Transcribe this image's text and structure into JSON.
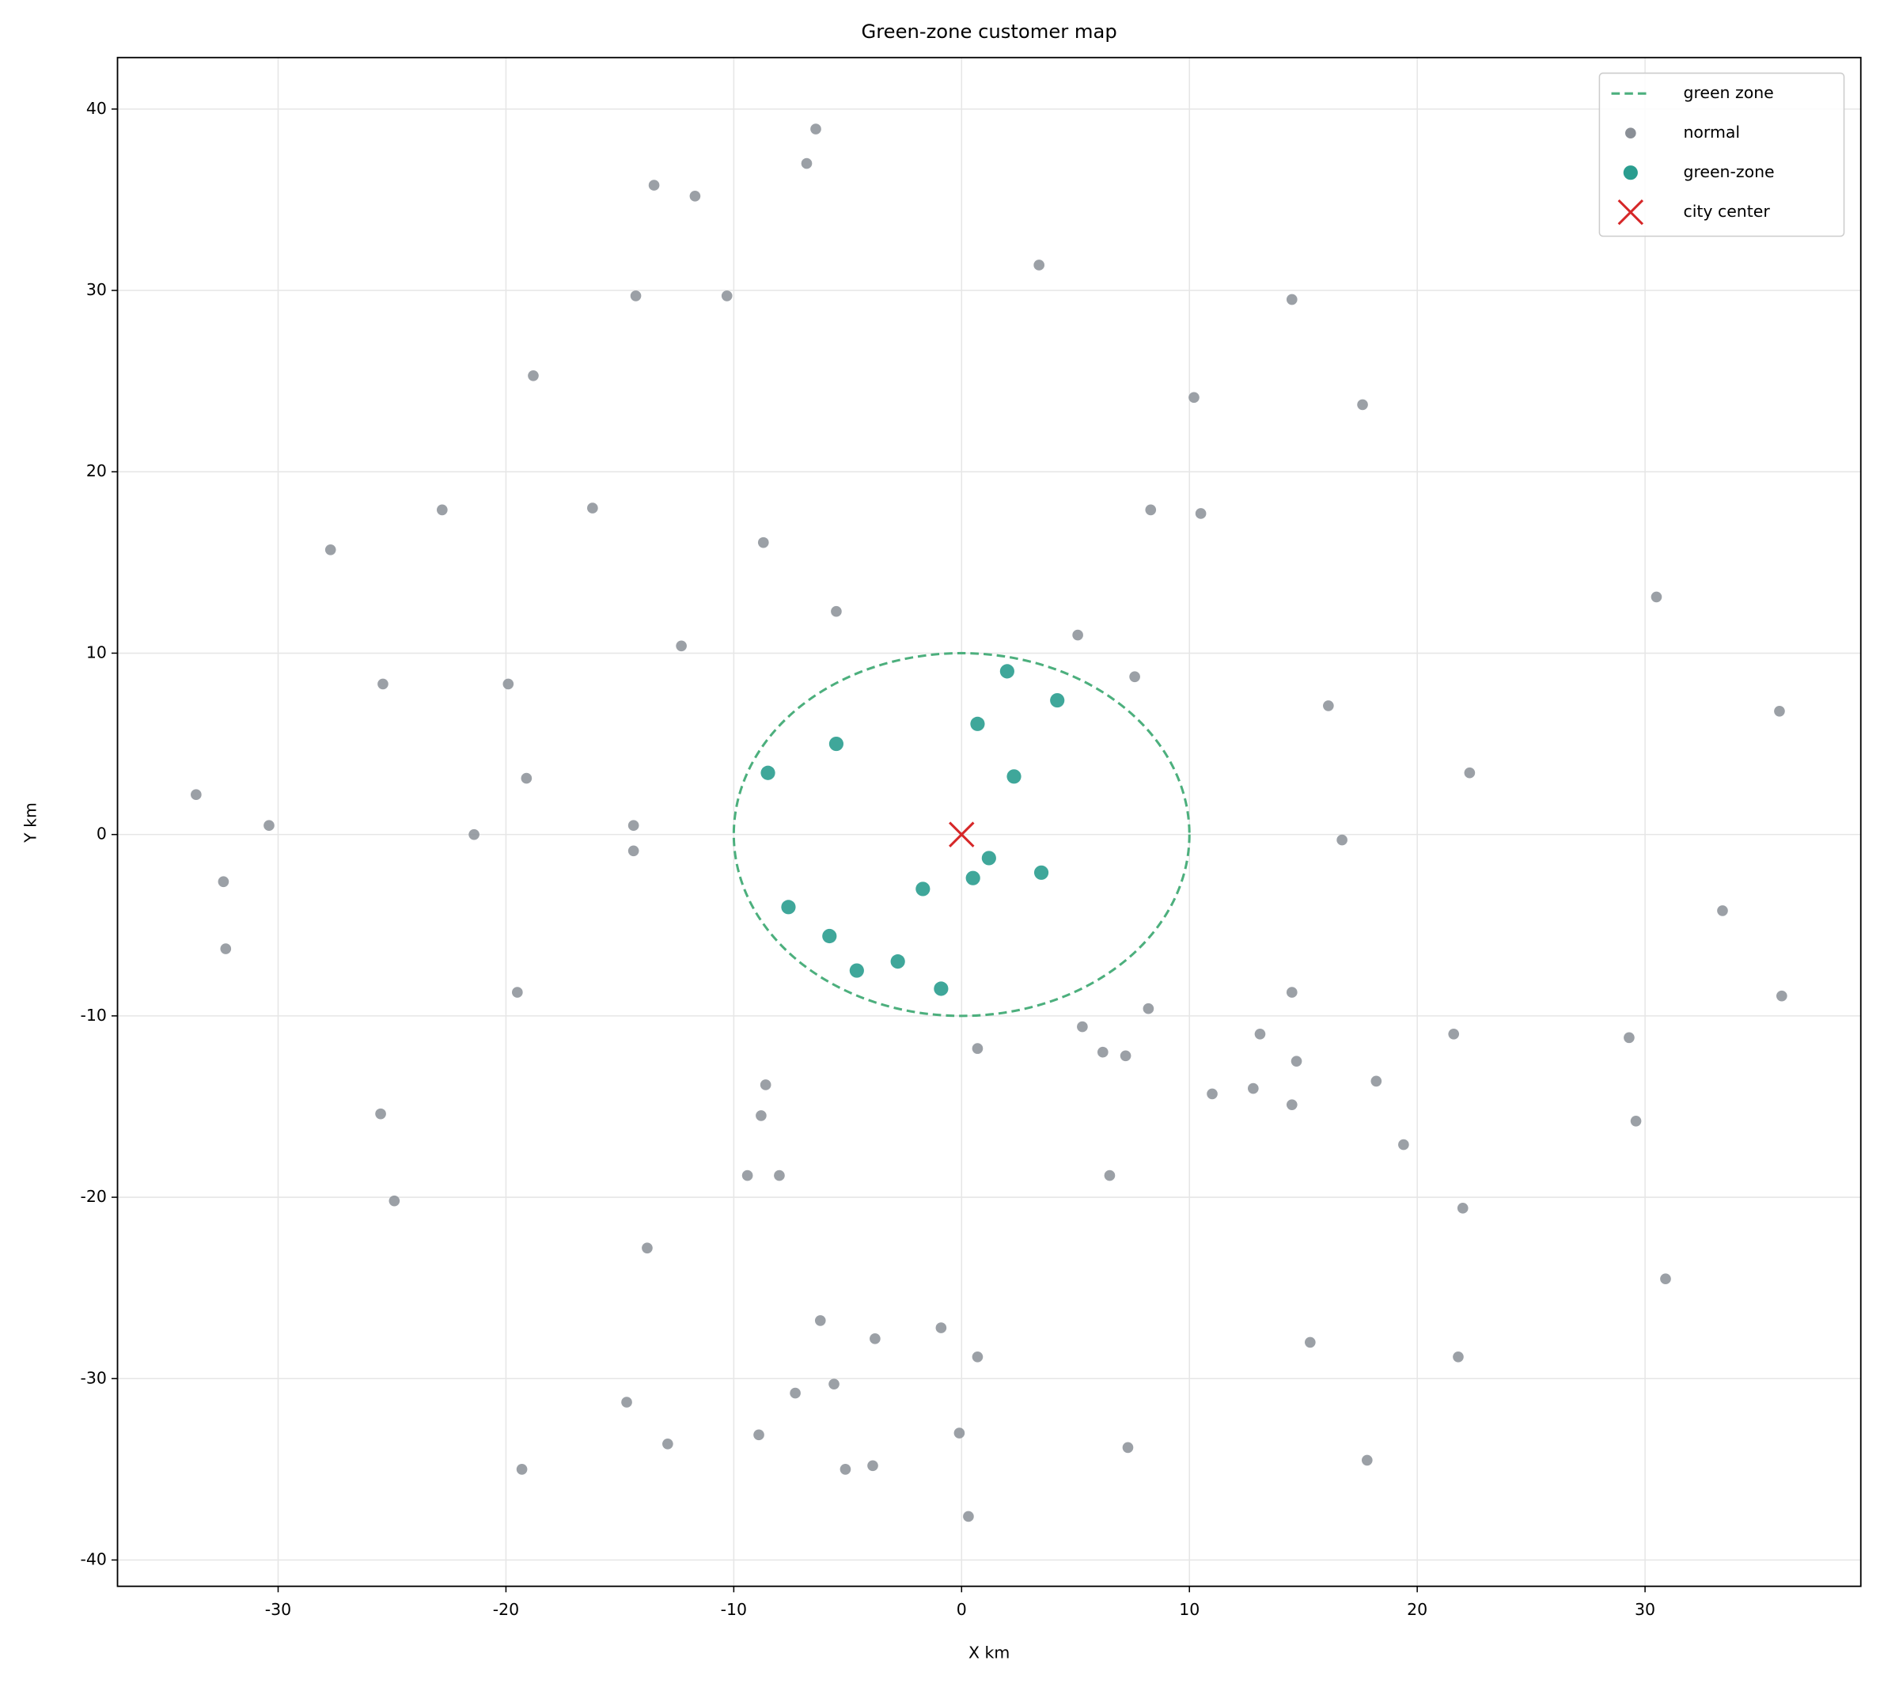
{
  "chart_data": {
    "type": "scatter",
    "title": "Green-zone customer map",
    "x_label": "X km",
    "y_label": "Y km",
    "xlim": [
      -37.05,
      39.47
    ],
    "ylim": [
      -41.45,
      42.84
    ],
    "xticks": [
      -30,
      -20,
      -10,
      0,
      10,
      20,
      30
    ],
    "yticks": [
      -40,
      -30,
      -20,
      -10,
      0,
      10,
      20,
      30,
      40
    ],
    "grid": true,
    "legend": "upper right",
    "zone": {
      "name": "green zone",
      "center_x": 0,
      "center_y": 0,
      "radius": 10,
      "color": "#4caf7d"
    },
    "series": [
      {
        "name": "normal",
        "color": "#8a8f96",
        "x": [
          -6.4,
          -6.8,
          -13.5,
          -11.7,
          3.4,
          -14.3,
          -10.3,
          14.5,
          -18.8,
          10.2,
          17.6,
          -22.8,
          -16.2,
          8.3,
          10.5,
          -27.7,
          -8.7,
          30.5,
          -5.5,
          5.1,
          -12.3,
          7.6,
          -25.4,
          -19.9,
          16.1,
          35.9,
          22.3,
          -19.1,
          -33.6,
          -30.4,
          -14.4,
          -21.4,
          16.7,
          -14.4,
          -32.4,
          -32.3,
          33.4,
          -19.5,
          14.5,
          36.0,
          8.2,
          5.3,
          13.1,
          21.6,
          29.3,
          0.7,
          6.2,
          7.2,
          14.7,
          -8.6,
          18.2,
          12.8,
          11.0,
          14.5,
          -25.5,
          -8.8,
          29.6,
          19.4,
          6.5,
          -9.4,
          -8.0,
          -24.9,
          22.0,
          -13.8,
          30.9,
          -6.2,
          -0.9,
          -3.8,
          15.3,
          0.7,
          21.8,
          -5.6,
          -7.3,
          -14.7,
          -0.1,
          -8.9,
          -12.9,
          7.3,
          17.8,
          -3.9,
          -5.1,
          -19.3,
          0.3
        ],
        "values": [
          38.9,
          37.0,
          35.8,
          35.2,
          31.4,
          29.7,
          29.7,
          29.5,
          25.3,
          24.1,
          23.7,
          17.9,
          18.0,
          17.9,
          17.7,
          15.7,
          16.1,
          13.1,
          12.3,
          11.0,
          10.4,
          8.7,
          8.3,
          8.3,
          7.1,
          6.8,
          3.4,
          3.1,
          2.2,
          0.5,
          0.5,
          0.0,
          -0.3,
          -0.9,
          -2.6,
          -6.3,
          -4.2,
          -8.7,
          -8.7,
          -8.9,
          -9.6,
          -10.6,
          -11.0,
          -11.0,
          -11.2,
          -11.8,
          -12.0,
          -12.2,
          -12.5,
          -13.8,
          -13.6,
          -14.0,
          -14.3,
          -14.9,
          -15.4,
          -15.5,
          -15.8,
          -17.1,
          -18.8,
          -18.8,
          -18.8,
          -20.2,
          -20.6,
          -22.8,
          -24.5,
          -26.8,
          -27.2,
          -27.8,
          -28.0,
          -28.8,
          -28.8,
          -30.3,
          -30.8,
          -31.3,
          -33.0,
          -33.1,
          -33.6,
          -33.8,
          -34.5,
          -34.8,
          -35.0,
          -35.0,
          -37.6
        ]
      },
      {
        "name": "green-zone",
        "color": "#2a9d8f",
        "x": [
          2.0,
          4.2,
          0.7,
          -5.5,
          -8.5,
          2.3,
          1.2,
          3.5,
          0.5,
          -1.7,
          -7.6,
          -5.8,
          -2.8,
          -4.6,
          -0.9
        ],
        "values": [
          9.0,
          7.4,
          6.1,
          5.0,
          3.4,
          3.2,
          -1.3,
          -2.1,
          -2.4,
          -3.0,
          -4.0,
          -5.6,
          -7.0,
          -7.5,
          -8.5
        ]
      }
    ],
    "center": {
      "name": "city center",
      "x": 0,
      "y": 0,
      "color": "#d62728"
    }
  }
}
